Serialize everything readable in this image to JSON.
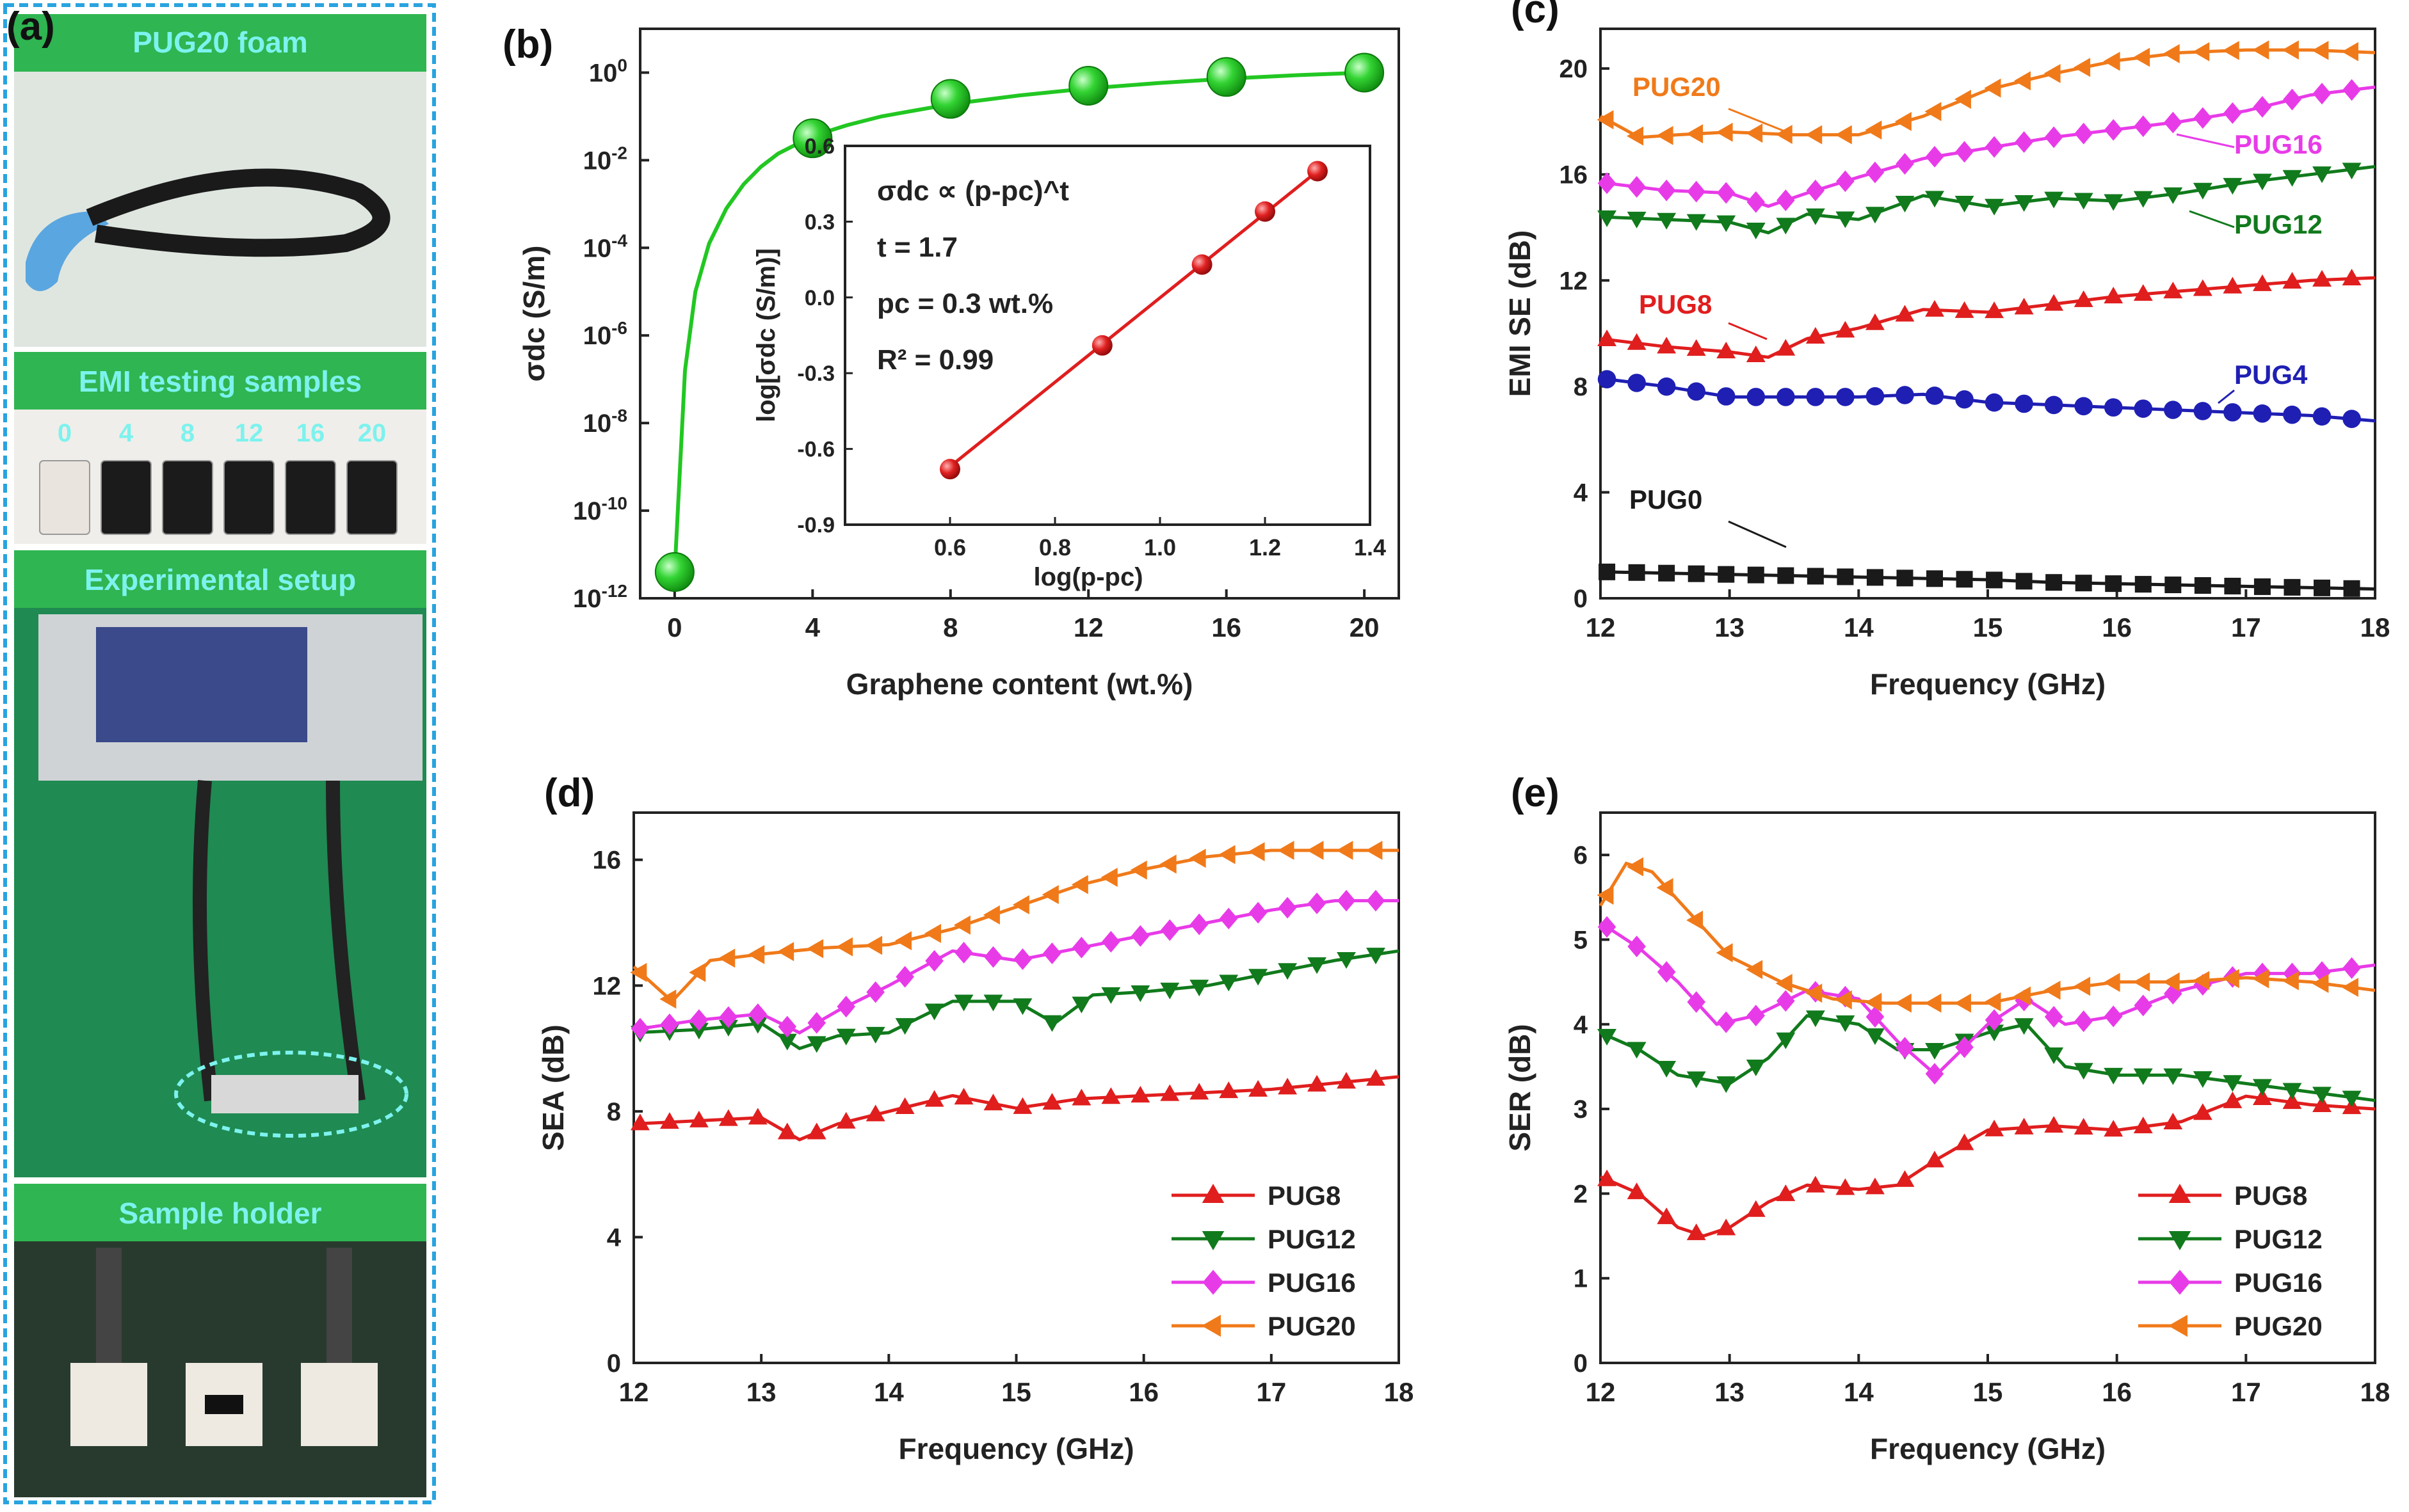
{
  "panel_a": {
    "label": "(a)",
    "foam_title": "PUG20 foam",
    "emi_title": "EMI testing  samples",
    "sample_numbers": [
      "0",
      "4",
      "8",
      "12",
      "16",
      "20"
    ],
    "setup_title": "Experimental setup",
    "holder_title": "Sample holder"
  },
  "colors": {
    "green": "#22c722",
    "black": "#1a1a1a",
    "blue": "#1f1fb4",
    "red": "#e01e1e",
    "darkgreen": "#117a1c",
    "magenta": "#e83be8",
    "orange": "#f07a1a",
    "panel_a_green": "#2fb551",
    "panel_a_border": "#29a3df",
    "label_text": "#7df2ee"
  },
  "chart_data": [
    {
      "id": "b",
      "label": "(b)",
      "type": "scatter",
      "title": "",
      "xlabel": "Graphene content (wt.%)",
      "ylabel": "σdc (S/m)",
      "xlim": [
        -1,
        21
      ],
      "xticks": [
        0,
        4,
        8,
        12,
        16,
        20
      ],
      "yscale": "log",
      "ylim_exp": [
        -12,
        1
      ],
      "yticks_exp": [
        0,
        -2,
        -4,
        -6,
        -8,
        -10,
        -12
      ],
      "ytick_labels": [
        "10^0",
        "10^-2",
        "10^-4",
        "10^-6",
        "10^-8",
        "10^-10",
        "10^-12"
      ],
      "series": [
        {
          "name": "σdc",
          "x": [
            0,
            4,
            8,
            12,
            16,
            20
          ],
          "y_exp": [
            -11.4,
            -1.5,
            -0.6,
            -0.3,
            -0.1,
            0.0
          ],
          "color": "#22c722",
          "marker": "sphere"
        }
      ],
      "fit_curve": {
        "x": [
          0,
          0.3,
          0.6,
          1,
          1.5,
          2,
          2.5,
          3,
          4,
          5,
          6,
          8,
          10,
          12,
          14,
          16,
          18,
          20
        ],
        "y_exp": [
          -11.4,
          -6.8,
          -5.0,
          -3.9,
          -3.1,
          -2.55,
          -2.15,
          -1.85,
          -1.45,
          -1.2,
          -1.0,
          -0.72,
          -0.52,
          -0.36,
          -0.24,
          -0.14,
          -0.06,
          0.0
        ]
      },
      "inset": {
        "type": "scatter",
        "xlabel": "log(p-pc)",
        "ylabel": "log[σdc (S/m)]",
        "xlim": [
          0.4,
          1.4
        ],
        "xticks": [
          0.6,
          0.8,
          1.0,
          1.2,
          1.4
        ],
        "xtick_labels": [
          "0.6",
          "0.8",
          "1.0",
          "1.2",
          "1.4"
        ],
        "ylim": [
          -0.9,
          0.6
        ],
        "yticks": [
          0.6,
          0.3,
          0.0,
          -0.3,
          -0.6,
          -0.9
        ],
        "ytick_labels": [
          "0.6",
          "0.3",
          "0.0",
          "-0.3",
          "-0.6",
          "-0.9"
        ],
        "x": [
          0.6,
          0.89,
          1.08,
          1.2,
          1.3
        ],
        "y": [
          -0.68,
          -0.19,
          0.13,
          0.34,
          0.5
        ],
        "fit": {
          "x": [
            0.6,
            1.3
          ],
          "y": [
            -0.67,
            0.5
          ]
        },
        "annotations": [
          "σdc ∝ (p-pc)^t",
          "t = 1.7",
          "pc = 0.3 wt.%",
          "R² = 0.99"
        ]
      }
    },
    {
      "id": "c",
      "label": "(c)",
      "type": "line",
      "xlabel": "Frequency (GHz)",
      "ylabel": "EMI SE (dB)",
      "xlim": [
        12,
        18
      ],
      "xticks": [
        12,
        13,
        14,
        15,
        16,
        17,
        18
      ],
      "ylim": [
        0,
        21.5
      ],
      "yticks": [
        0,
        4,
        8,
        12,
        16,
        20
      ],
      "series": [
        {
          "name": "PUG0",
          "marker": "square",
          "color": "#1a1a1a",
          "x": [
            12,
            12.5,
            13,
            13.5,
            14,
            14.5,
            15,
            15.5,
            16,
            16.5,
            17,
            17.5,
            18
          ],
          "y": [
            1.0,
            0.95,
            0.9,
            0.85,
            0.8,
            0.75,
            0.7,
            0.6,
            0.55,
            0.5,
            0.45,
            0.4,
            0.35
          ]
        },
        {
          "name": "PUG4",
          "marker": "circle",
          "color": "#1f1fb4",
          "x": [
            12,
            12.5,
            13,
            13.5,
            14,
            14.5,
            15,
            15.5,
            16,
            16.5,
            17,
            17.5,
            18
          ],
          "y": [
            8.3,
            8.0,
            7.6,
            7.6,
            7.6,
            7.7,
            7.4,
            7.3,
            7.2,
            7.1,
            7.0,
            6.9,
            6.7
          ]
        },
        {
          "name": "PUG8",
          "marker": "triangle-up",
          "color": "#e01e1e",
          "x": [
            12,
            12.5,
            13,
            13.3,
            13.6,
            14,
            14.5,
            15,
            15.5,
            16,
            16.5,
            17,
            17.5,
            18
          ],
          "y": [
            9.8,
            9.5,
            9.3,
            9.1,
            9.8,
            10.2,
            10.9,
            10.8,
            11.1,
            11.4,
            11.6,
            11.8,
            12.0,
            12.1
          ]
        },
        {
          "name": "PUG12",
          "marker": "triangle-down",
          "color": "#117a1c",
          "x": [
            12,
            12.5,
            13,
            13.3,
            13.6,
            14,
            14.5,
            15,
            15.5,
            16,
            16.5,
            17,
            17.5,
            18
          ],
          "y": [
            14.4,
            14.3,
            14.2,
            13.8,
            14.5,
            14.3,
            15.2,
            14.8,
            15.1,
            15.0,
            15.3,
            15.7,
            16.0,
            16.3
          ]
        },
        {
          "name": "PUG16",
          "marker": "diamond",
          "color": "#e83be8",
          "x": [
            12,
            12.5,
            13,
            13.3,
            13.6,
            14,
            14.5,
            15,
            15.5,
            16,
            16.5,
            17,
            17.5,
            18
          ],
          "y": [
            15.7,
            15.4,
            15.3,
            14.8,
            15.3,
            15.9,
            16.6,
            17.0,
            17.4,
            17.7,
            18.0,
            18.4,
            19.0,
            19.3
          ]
        },
        {
          "name": "PUG20",
          "marker": "triangle-left",
          "color": "#f07a1a",
          "x": [
            12,
            12.3,
            12.6,
            13,
            13.5,
            14,
            14.5,
            15,
            15.5,
            16,
            16.5,
            17,
            17.5,
            18
          ],
          "y": [
            18.2,
            17.4,
            17.5,
            17.6,
            17.5,
            17.5,
            18.2,
            19.2,
            19.8,
            20.3,
            20.6,
            20.7,
            20.7,
            20.6
          ]
        }
      ],
      "labels": [
        {
          "text": "PUG20",
          "series": "PUG20"
        },
        {
          "text": "PUG16",
          "series": "PUG16"
        },
        {
          "text": "PUG12",
          "series": "PUG12"
        },
        {
          "text": "PUG8",
          "series": "PUG8"
        },
        {
          "text": "PUG4",
          "series": "PUG4"
        },
        {
          "text": "PUG0",
          "series": "PUG0"
        }
      ]
    },
    {
      "id": "d",
      "label": "(d)",
      "type": "line",
      "xlabel": "Frequency (GHz)",
      "ylabel": "SEA (dB)",
      "xlim": [
        12,
        18
      ],
      "xticks": [
        12,
        13,
        14,
        15,
        16,
        17,
        18
      ],
      "ylim": [
        0,
        17.5
      ],
      "yticks": [
        0,
        4,
        8,
        12,
        16
      ],
      "legend": "bottom-right",
      "series": [
        {
          "name": "PUG8",
          "marker": "triangle-up",
          "color": "#e01e1e",
          "x": [
            12,
            12.5,
            13,
            13.3,
            13.6,
            14,
            14.5,
            15,
            15.5,
            16,
            16.5,
            17,
            17.5,
            18
          ],
          "y": [
            7.6,
            7.7,
            7.8,
            7.1,
            7.6,
            8.0,
            8.5,
            8.1,
            8.4,
            8.5,
            8.6,
            8.7,
            8.9,
            9.1
          ]
        },
        {
          "name": "PUG12",
          "marker": "triangle-down",
          "color": "#117a1c",
          "x": [
            12,
            12.5,
            13,
            13.3,
            13.6,
            14,
            14.5,
            15,
            15.3,
            15.6,
            16,
            16.5,
            17,
            17.5,
            18
          ],
          "y": [
            10.5,
            10.6,
            10.8,
            10.0,
            10.4,
            10.5,
            11.5,
            11.5,
            10.8,
            11.7,
            11.8,
            12.0,
            12.4,
            12.8,
            13.1
          ]
        },
        {
          "name": "PUG16",
          "marker": "diamond",
          "color": "#e83be8",
          "x": [
            12,
            12.5,
            13,
            13.3,
            13.6,
            14,
            14.5,
            15,
            15.5,
            16,
            16.5,
            17,
            17.5,
            18
          ],
          "y": [
            10.6,
            10.9,
            11.1,
            10.5,
            11.2,
            12.0,
            13.1,
            12.8,
            13.2,
            13.6,
            14.0,
            14.4,
            14.7,
            14.7
          ]
        },
        {
          "name": "PUG20",
          "marker": "triangle-left",
          "color": "#f07a1a",
          "x": [
            12,
            12.3,
            12.6,
            13,
            13.5,
            14,
            14.5,
            15,
            15.5,
            16,
            16.5,
            17,
            17.5,
            18
          ],
          "y": [
            12.6,
            11.5,
            12.8,
            13.0,
            13.2,
            13.3,
            13.8,
            14.5,
            15.2,
            15.7,
            16.1,
            16.3,
            16.3,
            16.3
          ]
        }
      ]
    },
    {
      "id": "e",
      "label": "(e)",
      "type": "line",
      "xlabel": "Frequency (GHz)",
      "ylabel": "SER (dB)",
      "xlim": [
        12,
        18
      ],
      "xticks": [
        12,
        13,
        14,
        15,
        16,
        17,
        18
      ],
      "ylim": [
        0,
        6.5
      ],
      "yticks": [
        0,
        1,
        2,
        3,
        4,
        5,
        6
      ],
      "legend": "bottom-right",
      "series": [
        {
          "name": "PUG8",
          "marker": "triangle-up",
          "color": "#e01e1e",
          "x": [
            12,
            12.3,
            12.6,
            12.8,
            13,
            13.3,
            13.6,
            14,
            14.3,
            14.6,
            15,
            15.5,
            16,
            16.5,
            17,
            17.5,
            18
          ],
          "y": [
            2.2,
            2.0,
            1.6,
            1.5,
            1.6,
            1.9,
            2.1,
            2.05,
            2.1,
            2.4,
            2.75,
            2.8,
            2.75,
            2.85,
            3.15,
            3.05,
            3.0
          ]
        },
        {
          "name": "PUG12",
          "marker": "triangle-down",
          "color": "#117a1c",
          "x": [
            12,
            12.3,
            12.6,
            13,
            13.3,
            13.6,
            14,
            14.3,
            14.6,
            15,
            15.3,
            15.6,
            16,
            16.5,
            17,
            17.5,
            18
          ],
          "y": [
            3.9,
            3.7,
            3.4,
            3.3,
            3.6,
            4.1,
            4.0,
            3.7,
            3.7,
            3.9,
            4.0,
            3.5,
            3.4,
            3.4,
            3.3,
            3.2,
            3.1
          ]
        },
        {
          "name": "PUG16",
          "marker": "diamond",
          "color": "#e83be8",
          "x": [
            12,
            12.3,
            12.6,
            12.9,
            13.2,
            13.6,
            14,
            14.3,
            14.6,
            15,
            15.3,
            15.6,
            16,
            16.5,
            17,
            17.5,
            18
          ],
          "y": [
            5.2,
            4.9,
            4.5,
            4.0,
            4.1,
            4.4,
            4.3,
            3.8,
            3.4,
            4.0,
            4.3,
            4.0,
            4.1,
            4.4,
            4.6,
            4.6,
            4.7
          ]
        },
        {
          "name": "PUG20",
          "marker": "triangle-left",
          "color": "#f07a1a",
          "x": [
            12,
            12.2,
            12.4,
            12.7,
            13,
            13.4,
            13.8,
            14.2,
            14.6,
            15,
            15.5,
            16,
            16.5,
            17,
            17.5,
            18
          ],
          "y": [
            5.4,
            5.9,
            5.8,
            5.3,
            4.8,
            4.5,
            4.3,
            4.25,
            4.25,
            4.25,
            4.4,
            4.5,
            4.5,
            4.55,
            4.5,
            4.4
          ]
        }
      ]
    }
  ]
}
